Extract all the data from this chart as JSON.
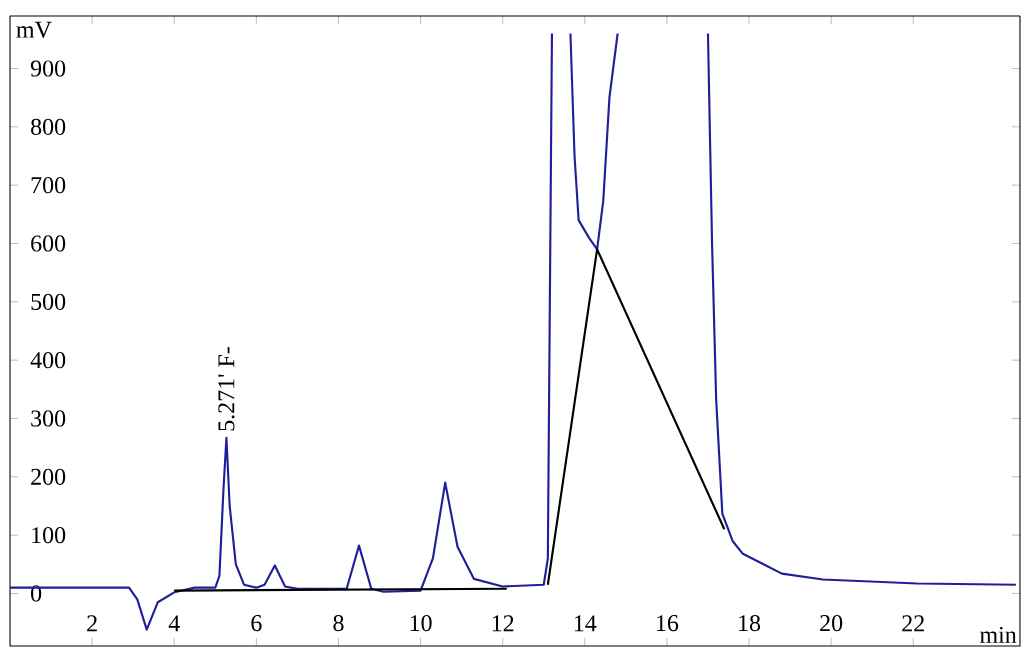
{
  "chart_data": {
    "type": "line",
    "xlabel": "min",
    "ylabel": "mV",
    "xlim": [
      0,
      24.6
    ],
    "ylim": [
      -90,
      990
    ],
    "xticks": [
      2,
      4,
      6,
      8,
      10,
      12,
      14,
      16,
      18,
      20,
      22
    ],
    "yticks": [
      0,
      100,
      200,
      300,
      400,
      500,
      600,
      700,
      800,
      900
    ],
    "series": [
      {
        "color": "#1f1f99",
        "x": [
          0,
          1,
          2,
          2.9,
          3.1,
          3.33,
          3.6,
          4.0,
          4.5,
          5.0,
          5.1,
          5.2,
          5.271,
          5.35,
          5.5,
          5.7,
          6.0,
          6.2,
          6.45,
          6.7,
          7.0,
          8.2,
          8.5,
          8.8,
          9.1,
          10.0,
          10.3,
          10.6,
          10.9,
          11.3,
          12.0,
          13.0,
          13.1,
          13.2,
          13.4,
          13.65,
          13.75,
          13.85,
          14.1,
          14.3,
          14.45,
          14.6,
          14.8,
          15.9,
          17.0,
          17.1,
          17.2,
          17.35,
          17.6,
          17.85,
          18.8,
          19.8,
          22.1,
          24.5
        ],
        "values": [
          10,
          10,
          10,
          10,
          -10,
          -62,
          -15,
          2,
          10,
          10,
          30,
          180,
          267,
          150,
          50,
          15,
          10,
          15,
          48,
          12,
          8,
          8,
          82,
          8,
          3,
          5,
          60,
          190,
          80,
          25,
          12,
          15,
          60,
          960,
          null,
          960,
          750,
          640,
          610,
          590,
          673,
          850,
          960,
          null,
          960,
          600,
          332,
          137,
          90,
          68,
          34,
          24,
          17,
          15
        ]
      },
      {
        "color": "#000000",
        "x": [
          13.1,
          14.3,
          17.4
        ],
        "values": [
          15,
          590,
          110
        ]
      },
      {
        "color": "#000000",
        "x": [
          4.0,
          12.1
        ],
        "values": [
          5,
          8
        ]
      }
    ],
    "annotations": [
      {
        "text": "5.271' F-",
        "x": 5.271,
        "y": 267
      }
    ]
  }
}
